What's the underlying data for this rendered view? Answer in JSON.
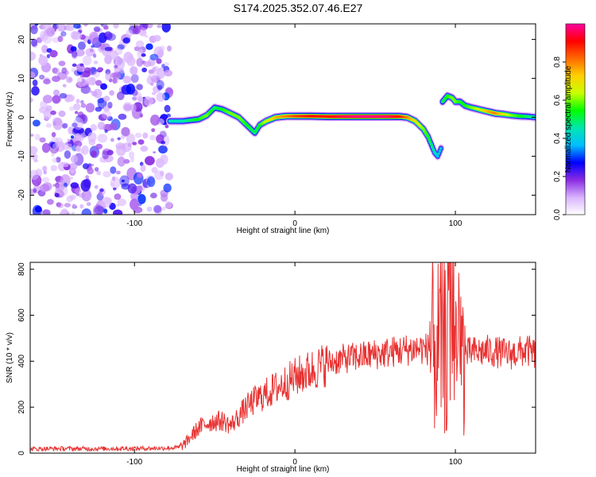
{
  "title": "S174.2025.352.07.46.E27",
  "chart_data": [
    {
      "type": "heatmap",
      "xlabel": "Height of straight line (km)",
      "ylabel": "Frequency (Hz)",
      "xlim": [
        -165,
        150
      ],
      "ylim": [
        -25,
        24
      ],
      "xticks": [
        -100,
        0,
        100
      ],
      "yticks": [
        -20,
        -10,
        0,
        10,
        20
      ],
      "colorbar": {
        "label": "Normalized spectral amplitude",
        "range": [
          0,
          1
        ],
        "ticks": [
          "0.0",
          "0.2",
          "0.4",
          "0.6",
          "0.8"
        ],
        "colors": [
          "#ffffff",
          "#d9b3ff",
          "#8a2be2",
          "#0000ff",
          "#00bfff",
          "#00e6b0",
          "#00ff00",
          "#c8ff00",
          "#ffd000",
          "#ff6a00",
          "#ff0000",
          "#ff00a0"
        ]
      },
      "noise_region_x": [
        -165,
        -78
      ],
      "ridge": {
        "x": [
          -78,
          -70,
          -60,
          -55,
          -50,
          -45,
          -40,
          -35,
          -30,
          -25,
          -22,
          -18,
          -12,
          -5,
          0,
          10,
          20,
          30,
          40,
          50,
          60,
          65,
          70,
          75,
          80,
          83,
          85,
          87,
          89,
          91
        ],
        "freq": [
          -1,
          -1,
          -0.5,
          0.5,
          2.5,
          2,
          1,
          0,
          -2,
          -4,
          -2,
          -1,
          0,
          0.3,
          0.3,
          0.3,
          0.2,
          0.2,
          0.2,
          0.2,
          0.2,
          0.2,
          0,
          -1,
          -3,
          -5,
          -7,
          -9,
          -10,
          -8
        ],
        "amp": [
          0.45,
          0.45,
          0.55,
          0.6,
          0.5,
          0.55,
          0.6,
          0.6,
          0.55,
          0.5,
          0.55,
          0.65,
          0.75,
          0.8,
          0.85,
          0.9,
          0.9,
          0.95,
          0.98,
          0.98,
          0.95,
          0.9,
          0.8,
          0.7,
          0.6,
          0.55,
          0.5,
          0.45,
          0.4,
          0.4
        ]
      },
      "ridge2": {
        "x": [
          92,
          95,
          98,
          100,
          103,
          106,
          110,
          115,
          120,
          125,
          130,
          135,
          140,
          145,
          150
        ],
        "freq": [
          4,
          5.5,
          5,
          4,
          4,
          3,
          2.5,
          2,
          1.5,
          1,
          0.8,
          0.5,
          0.3,
          0.2,
          0
        ],
        "amp": [
          0.5,
          0.55,
          0.6,
          0.6,
          0.55,
          0.55,
          0.6,
          0.65,
          0.75,
          0.8,
          0.7,
          0.6,
          0.55,
          0.5,
          0.45
        ]
      }
    },
    {
      "type": "line",
      "xlabel": "Height of straight line (km)",
      "ylabel": "SNR (10 * v/v)",
      "xlim": [
        -165,
        150
      ],
      "ylim": [
        0,
        830
      ],
      "xticks": [
        -100,
        0,
        100
      ],
      "yticks": [
        0,
        200,
        400,
        600,
        800
      ],
      "series": [
        {
          "name": "SNR",
          "color": "#e83232",
          "x": [
            -165,
            -150,
            -130,
            -110,
            -90,
            -80,
            -72,
            -68,
            -64,
            -60,
            -55,
            -50,
            -45,
            -40,
            -35,
            -30,
            -25,
            -20,
            -15,
            -10,
            -5,
            0,
            5,
            10,
            15,
            20,
            25,
            30,
            35,
            40,
            45,
            50,
            55,
            60,
            65,
            70,
            75,
            80,
            85,
            88,
            91,
            94,
            96,
            98,
            100,
            103,
            106,
            110,
            115,
            120,
            125,
            130,
            135,
            140,
            145,
            150
          ],
          "y": [
            18,
            20,
            19,
            20,
            21,
            22,
            25,
            45,
            80,
            110,
            130,
            140,
            140,
            120,
            160,
            200,
            230,
            250,
            270,
            290,
            310,
            330,
            345,
            360,
            375,
            390,
            400,
            410,
            415,
            420,
            425,
            430,
            435,
            440,
            445,
            450,
            455,
            455,
            450,
            460,
            470,
            450,
            380,
            300,
            450,
            420,
            430,
            440,
            440,
            445,
            440,
            435,
            430,
            440,
            445,
            430
          ]
        }
      ]
    }
  ]
}
